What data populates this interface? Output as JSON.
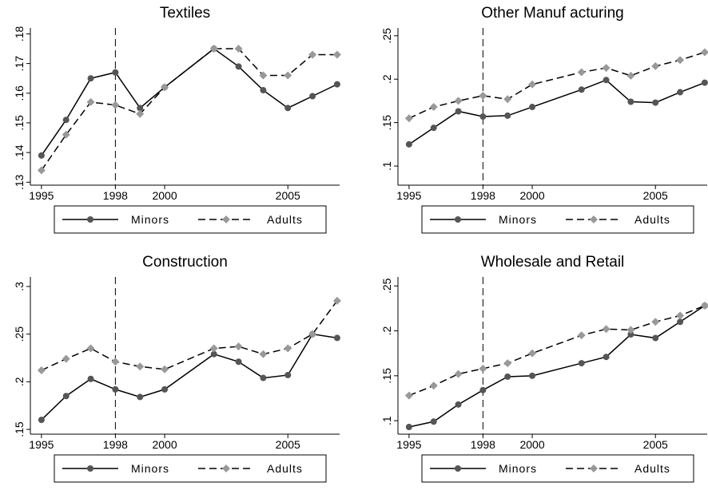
{
  "chart_data": [
    {
      "type": "line",
      "title": "Textiles",
      "x": [
        1995,
        1996,
        1997,
        1998,
        1999,
        2000,
        2002,
        2003,
        2004,
        2005,
        2006,
        2007
      ],
      "series": [
        {
          "name": "Minors",
          "color": "#555555",
          "values": [
            0.139,
            0.151,
            0.165,
            0.167,
            0.155,
            0.162,
            0.175,
            0.169,
            0.161,
            0.155,
            0.159,
            0.163
          ]
        },
        {
          "name": "Adults",
          "color": "#999999",
          "values": [
            0.134,
            0.146,
            0.157,
            0.156,
            0.153,
            0.162,
            0.175,
            0.175,
            0.166,
            0.166,
            0.173,
            0.173
          ]
        }
      ],
      "xlim": [
        1994.55,
        2007.1
      ],
      "xticks": [
        1995,
        1998,
        2000,
        2005
      ],
      "vline": 1998,
      "ylim": [
        0.129,
        0.182
      ],
      "yticks": [
        {
          "value": 0.13,
          "label": ".13"
        },
        {
          "value": 0.14,
          "label": ".14"
        },
        {
          "value": 0.15,
          "label": ".15"
        },
        {
          "value": 0.16,
          "label": ".16"
        },
        {
          "value": 0.17,
          "label": ".17"
        },
        {
          "value": 0.18,
          "label": ".18"
        }
      ]
    },
    {
      "type": "line",
      "title": "Other Manuf acturing",
      "x": [
        1995,
        1996,
        1997,
        1998,
        1999,
        2000,
        2002,
        2003,
        2004,
        2005,
        2006,
        2007
      ],
      "series": [
        {
          "name": "Minors",
          "color": "#555555",
          "values": [
            0.125,
            0.144,
            0.163,
            0.157,
            0.158,
            0.168,
            0.188,
            0.199,
            0.174,
            0.173,
            0.185,
            0.196
          ]
        },
        {
          "name": "Adults",
          "color": "#999999",
          "values": [
            0.155,
            0.168,
            0.175,
            0.181,
            0.177,
            0.194,
            0.208,
            0.213,
            0.204,
            0.215,
            0.222,
            0.231
          ]
        }
      ],
      "xlim": [
        1994.55,
        2007.1
      ],
      "xticks": [
        1995,
        1998,
        2000,
        2005
      ],
      "vline": 1998,
      "ylim": [
        0.078,
        0.259
      ],
      "yticks": [
        {
          "value": 0.1,
          "label": ".1"
        },
        {
          "value": 0.15,
          "label": ".15"
        },
        {
          "value": 0.2,
          "label": ".2"
        },
        {
          "value": 0.25,
          "label": ".25"
        }
      ]
    },
    {
      "type": "line",
      "title": "Construction",
      "x": [
        1995,
        1996,
        1997,
        1998,
        1999,
        2000,
        2002,
        2003,
        2004,
        2005,
        2006,
        2007
      ],
      "series": [
        {
          "name": "Minors",
          "color": "#555555",
          "values": [
            0.16,
            0.185,
            0.203,
            0.192,
            0.184,
            0.192,
            0.229,
            0.221,
            0.204,
            0.207,
            0.25,
            0.246
          ]
        },
        {
          "name": "Adults",
          "color": "#999999",
          "values": [
            0.212,
            0.224,
            0.235,
            0.221,
            0.216,
            0.213,
            0.235,
            0.237,
            0.229,
            0.235,
            0.25,
            0.285
          ]
        }
      ],
      "xlim": [
        1994.55,
        2007.1
      ],
      "xticks": [
        1995,
        1998,
        2000,
        2005
      ],
      "vline": 1998,
      "ylim": [
        0.145,
        0.31
      ],
      "yticks": [
        {
          "value": 0.15,
          "label": ".15"
        },
        {
          "value": 0.2,
          "label": ".2"
        },
        {
          "value": 0.25,
          "label": ".25"
        },
        {
          "value": 0.3,
          "label": ".3"
        }
      ]
    },
    {
      "type": "line",
      "title": "Wholesale and Retail",
      "x": [
        1995,
        1996,
        1997,
        1998,
        1999,
        2000,
        2002,
        2003,
        2004,
        2005,
        2006,
        2007
      ],
      "series": [
        {
          "name": "Minors",
          "color": "#555555",
          "values": [
            0.093,
            0.099,
            0.118,
            0.134,
            0.149,
            0.15,
            0.164,
            0.171,
            0.196,
            0.192,
            0.21,
            0.228
          ]
        },
        {
          "name": "Adults",
          "color": "#999999",
          "values": [
            0.128,
            0.139,
            0.152,
            0.158,
            0.164,
            0.175,
            0.195,
            0.202,
            0.201,
            0.21,
            0.217,
            0.228
          ]
        }
      ],
      "xlim": [
        1994.55,
        2007.1
      ],
      "xticks": [
        1995,
        1998,
        2000,
        2005
      ],
      "vline": 1998,
      "ylim": [
        0.085,
        0.26
      ],
      "yticks": [
        {
          "value": 0.1,
          "label": ".1"
        },
        {
          "value": 0.15,
          "label": ".15"
        },
        {
          "value": 0.2,
          "label": ".2"
        },
        {
          "value": 0.25,
          "label": ".25"
        }
      ]
    }
  ]
}
